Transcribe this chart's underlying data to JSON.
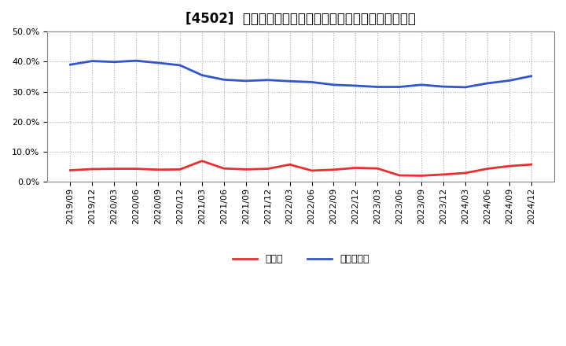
{
  "title": "[4502]  現預金、有利子負債の総資産に対する比率の推移",
  "x_labels": [
    "2019/09",
    "2019/12",
    "2020/03",
    "2020/06",
    "2020/09",
    "2020/12",
    "2021/03",
    "2021/06",
    "2021/09",
    "2021/12",
    "2022/03",
    "2022/06",
    "2022/09",
    "2022/12",
    "2023/03",
    "2023/06",
    "2023/09",
    "2023/12",
    "2024/03",
    "2024/06",
    "2024/09",
    "2024/12"
  ],
  "cash": [
    3.9,
    4.3,
    4.4,
    4.4,
    4.1,
    4.2,
    7.0,
    4.5,
    4.2,
    4.4,
    5.8,
    3.8,
    4.1,
    4.7,
    4.5,
    2.2,
    2.1,
    2.5,
    3.0,
    4.4,
    5.3,
    5.8
  ],
  "debt": [
    39.0,
    40.2,
    39.9,
    40.3,
    39.6,
    38.8,
    35.5,
    34.0,
    33.6,
    33.9,
    33.5,
    33.2,
    32.3,
    32.0,
    31.6,
    31.6,
    32.3,
    31.7,
    31.5,
    32.8,
    33.7,
    35.2
  ],
  "cash_color": "#e83030",
  "debt_color": "#3355cc",
  "background_color": "#ffffff",
  "grid_color": "#aaaaaa",
  "ylim": [
    0.0,
    50.0
  ],
  "yticks": [
    0.0,
    10.0,
    20.0,
    30.0,
    40.0,
    50.0
  ],
  "legend_cash": "現預金",
  "legend_debt": "有利子負債",
  "title_fontsize": 12,
  "tick_fontsize": 8,
  "legend_fontsize": 9
}
